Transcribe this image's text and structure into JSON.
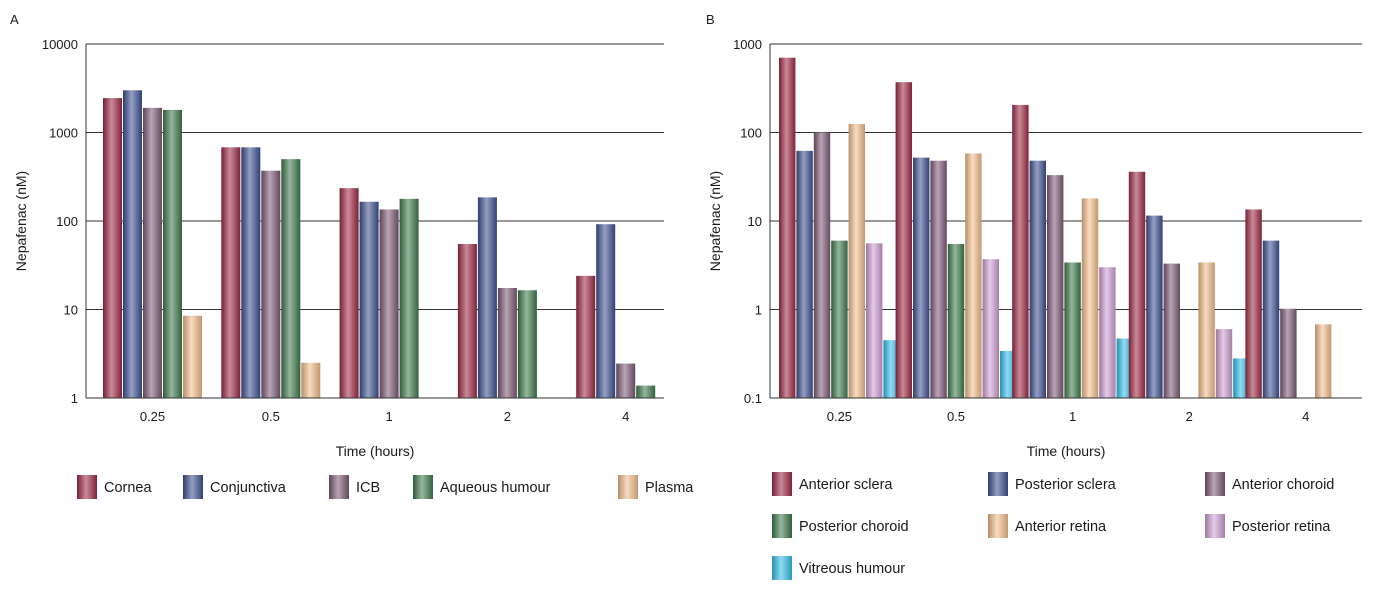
{
  "chart_data": [
    {
      "panel_label": "A",
      "type": "bar",
      "xlabel": "Time (hours)",
      "ylabel": "Nepafenac (nM)",
      "yscale": "log",
      "ylim": [
        1,
        10000
      ],
      "yticks": [
        "1",
        "10",
        "100",
        "1000",
        "10000"
      ],
      "grid": true,
      "legend_position": "bottom",
      "categories": [
        "0.25",
        "0.5",
        "1",
        "2",
        "4"
      ],
      "series": [
        {
          "name": "Cornea",
          "color": "#9e2a45",
          "values": [
            2450,
            680,
            235,
            55,
            24
          ]
        },
        {
          "name": "Conjunctiva",
          "color": "#3d5190",
          "values": [
            3000,
            680,
            165,
            185,
            92
          ]
        },
        {
          "name": "ICB",
          "color": "#7d5a76",
          "values": [
            1900,
            370,
            135,
            17.5,
            2.45
          ]
        },
        {
          "name": "Aqueous humour",
          "color": "#3f7a4c",
          "values": [
            1800,
            500,
            178,
            16.5,
            1.38
          ]
        },
        {
          "name": "Plasma",
          "color": "#f2be8c",
          "values": [
            8.5,
            2.5,
            null,
            null,
            null
          ]
        }
      ]
    },
    {
      "panel_label": "B",
      "type": "bar",
      "xlabel": "Time (hours)",
      "ylabel": "Nepafenac (nM)",
      "yscale": "log",
      "ylim": [
        0.1,
        1000
      ],
      "yticks": [
        "0.1",
        "1",
        "10",
        "100",
        "1000"
      ],
      "grid": true,
      "legend_position": "bottom",
      "categories": [
        "0.25",
        "0.5",
        "1",
        "2",
        "4"
      ],
      "series": [
        {
          "name": "Anterior sclera",
          "color": "#9e2a45",
          "values": [
            700,
            370,
            205,
            36,
            13.5
          ]
        },
        {
          "name": "Posterior sclera",
          "color": "#3d5190",
          "values": [
            62,
            52,
            48,
            11.5,
            6
          ]
        },
        {
          "name": "Anterior choroid",
          "color": "#7d5a76",
          "values": [
            100,
            48,
            33,
            3.3,
            1.02
          ]
        },
        {
          "name": "Posterior choroid",
          "color": "#3f7a4c",
          "values": [
            6,
            5.5,
            3.4,
            null,
            null
          ]
        },
        {
          "name": "Anterior retina",
          "color": "#f2be8c",
          "values": [
            125,
            58,
            18,
            3.4,
            0.68
          ]
        },
        {
          "name": "Posterior retina",
          "color": "#cf9fd3",
          "values": [
            5.6,
            3.7,
            3,
            0.6,
            null
          ]
        },
        {
          "name": "Vitreous humour",
          "color": "#33c0ea",
          "values": [
            0.45,
            0.34,
            0.47,
            0.28,
            null
          ]
        }
      ]
    }
  ]
}
